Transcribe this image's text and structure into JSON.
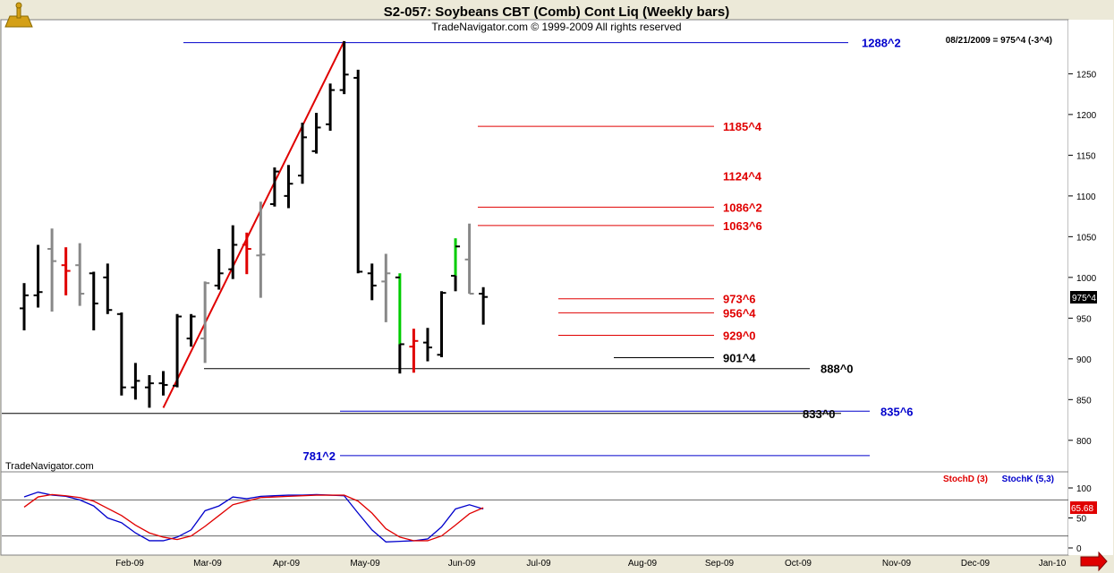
{
  "header": {
    "title": "S2-057:  Soybeans CBT (Comb) Cont Liq  (Weekly bars)",
    "subtitle": "TradeNavigator.com © 1999-2009 All rights reserved",
    "quote": "08/21/2009 = 975^4 (-3^4)",
    "watermark": "TradeNavigator.com",
    "last_price": "975^4",
    "stoch_value": "65.68"
  },
  "indicator_legend": {
    "stochd": "StochD (3)",
    "stochk": "StochK (5,3)"
  },
  "colors": {
    "up": "#000000",
    "gray": "#888888",
    "red": "#e00000",
    "green": "#00cc00",
    "blue_line": "#0000cc",
    "red_line": "#e00000",
    "background": "#ffffff",
    "frame": "#ece9d8"
  },
  "chart_data": {
    "type": "ohlc",
    "y_axis": {
      "min": 780,
      "max": 1290,
      "ticks": [
        800,
        850,
        900,
        950,
        1000,
        1050,
        1100,
        1150,
        1200,
        1250
      ],
      "side": "right"
    },
    "x_axis": {
      "labels": [
        "Feb-09",
        "Mar-09",
        "Apr-09",
        "May-09",
        "Jun-09",
        "Jul-09",
        "Aug-09",
        "Sep-09",
        "Oct-09",
        "Nov-09",
        "Dec-09",
        "Jan-10"
      ],
      "label_text": [
        "Feb-09",
        "Mar-09",
        "Apr-09",
        "May-09",
        "Jun-09",
        "Jul-09",
        "Aug-09",
        "Sep-09",
        "Oct-09",
        "Nov-09",
        "Dec-09",
        "Jan-10"
      ]
    },
    "bars": [
      {
        "o": 962,
        "h": 993,
        "l": 935,
        "c": 978,
        "color": "black"
      },
      {
        "o": 978,
        "h": 1040,
        "l": 963,
        "c": 982,
        "color": "black"
      },
      {
        "o": 1035,
        "h": 1060,
        "l": 958,
        "c": 1020,
        "color": "gray"
      },
      {
        "o": 1015,
        "h": 1037,
        "l": 978,
        "c": 1008,
        "color": "red"
      },
      {
        "o": 1015,
        "h": 1042,
        "l": 965,
        "c": 980,
        "color": "gray"
      },
      {
        "o": 1005,
        "h": 1007,
        "l": 935,
        "c": 968,
        "color": "black"
      },
      {
        "o": 1000,
        "h": 1017,
        "l": 955,
        "c": 960,
        "color": "black"
      },
      {
        "o": 955,
        "h": 957,
        "l": 855,
        "c": 865,
        "color": "black"
      },
      {
        "o": 865,
        "h": 895,
        "l": 850,
        "c": 873,
        "color": "black"
      },
      {
        "o": 865,
        "h": 880,
        "l": 840,
        "c": 870,
        "color": "black"
      },
      {
        "o": 870,
        "h": 885,
        "l": 855,
        "c": 868,
        "color": "black"
      },
      {
        "o": 867,
        "h": 955,
        "l": 865,
        "c": 952,
        "color": "black"
      },
      {
        "o": 925,
        "h": 955,
        "l": 915,
        "c": 952,
        "color": "black"
      },
      {
        "o": 925,
        "h": 995,
        "l": 895,
        "c": 993,
        "color": "gray"
      },
      {
        "o": 990,
        "h": 1035,
        "l": 985,
        "c": 1005,
        "color": "black"
      },
      {
        "o": 1010,
        "h": 1064,
        "l": 998,
        "c": 1040,
        "color": "black"
      },
      {
        "o": 1040,
        "h": 1055,
        "l": 1004,
        "c": 1035,
        "color": "red"
      },
      {
        "o": 1027,
        "h": 1093,
        "l": 975,
        "c": 1028,
        "color": "gray"
      },
      {
        "o": 1090,
        "h": 1135,
        "l": 1087,
        "c": 1130,
        "color": "black"
      },
      {
        "o": 1100,
        "h": 1138,
        "l": 1085,
        "c": 1115,
        "color": "black"
      },
      {
        "o": 1125,
        "h": 1190,
        "l": 1115,
        "c": 1172,
        "color": "black"
      },
      {
        "o": 1155,
        "h": 1202,
        "l": 1152,
        "c": 1184,
        "color": "black"
      },
      {
        "o": 1188,
        "h": 1238,
        "l": 1180,
        "c": 1230,
        "color": "black"
      },
      {
        "o": 1230,
        "h": 1290,
        "l": 1225,
        "c": 1249,
        "color": "black"
      },
      {
        "o": 1245,
        "h": 1255,
        "l": 1005,
        "c": 1007,
        "color": "black"
      },
      {
        "o": 1005,
        "h": 1017,
        "l": 972,
        "c": 990,
        "color": "black"
      },
      {
        "o": 995,
        "h": 1029,
        "l": 945,
        "c": 1005,
        "color": "gray"
      },
      {
        "o": 1000,
        "h": 1005,
        "l": 882,
        "c": 918,
        "color": "green_black"
      },
      {
        "o": 915,
        "h": 937,
        "l": 883,
        "c": 922,
        "color": "red"
      },
      {
        "o": 920,
        "h": 938,
        "l": 897,
        "c": 914,
        "color": "black"
      },
      {
        "o": 905,
        "h": 983,
        "l": 902,
        "c": 981,
        "color": "black"
      },
      {
        "o": 1002,
        "h": 1048,
        "l": 983,
        "c": 1038,
        "color": "green_black"
      },
      {
        "o": 1022,
        "h": 1066,
        "l": 980,
        "c": 980,
        "color": "gray"
      },
      {
        "o": 980,
        "h": 988,
        "l": 942,
        "c": 976,
        "color": "black"
      }
    ],
    "levels": [
      {
        "label": "1288^2",
        "value": 1288.25,
        "color": "blue"
      },
      {
        "label": "1185^4",
        "value": 1185.5,
        "color": "red"
      },
      {
        "label": "1124^4",
        "value": 1124.5,
        "color": "red"
      },
      {
        "label": "1086^2",
        "value": 1086.25,
        "color": "red"
      },
      {
        "label": "1063^6",
        "value": 1063.75,
        "color": "red"
      },
      {
        "label": "973^6",
        "value": 973.75,
        "color": "red"
      },
      {
        "label": "956^4",
        "value": 956.5,
        "color": "red"
      },
      {
        "label": "929^0",
        "value": 929.0,
        "color": "red"
      },
      {
        "label": "901^4",
        "value": 901.5,
        "color": "black"
      },
      {
        "label": "888^0",
        "value": 888.0,
        "color": "black"
      },
      {
        "label": "835^6",
        "value": 835.75,
        "color": "blue"
      },
      {
        "label": "833^0",
        "value": 833.0,
        "color": "black"
      },
      {
        "label": "781^2",
        "value": 781.25,
        "color": "blue"
      }
    ],
    "trendline": {
      "from_bar": 10,
      "from_value": 840,
      "to_bar": 23,
      "to_value": 1290
    },
    "stochastic": {
      "y_axis": {
        "min": 0,
        "max": 100,
        "ticks": [
          0,
          50,
          100
        ],
        "lines": [
          20,
          80
        ]
      },
      "stochk": [
        85,
        93,
        88,
        86,
        80,
        70,
        50,
        42,
        25,
        12,
        12,
        18,
        30,
        62,
        70,
        85,
        82,
        86,
        87,
        88,
        88,
        89,
        88,
        87,
        58,
        30,
        10,
        11,
        12,
        15,
        35,
        65,
        72,
        65
      ],
      "stochd": [
        68,
        85,
        89,
        87,
        84,
        78,
        66,
        54,
        38,
        25,
        18,
        14,
        20,
        36,
        54,
        72,
        78,
        84,
        85,
        86,
        87,
        88,
        88,
        88,
        78,
        58,
        32,
        18,
        12,
        12,
        20,
        38,
        57,
        67
      ]
    }
  }
}
